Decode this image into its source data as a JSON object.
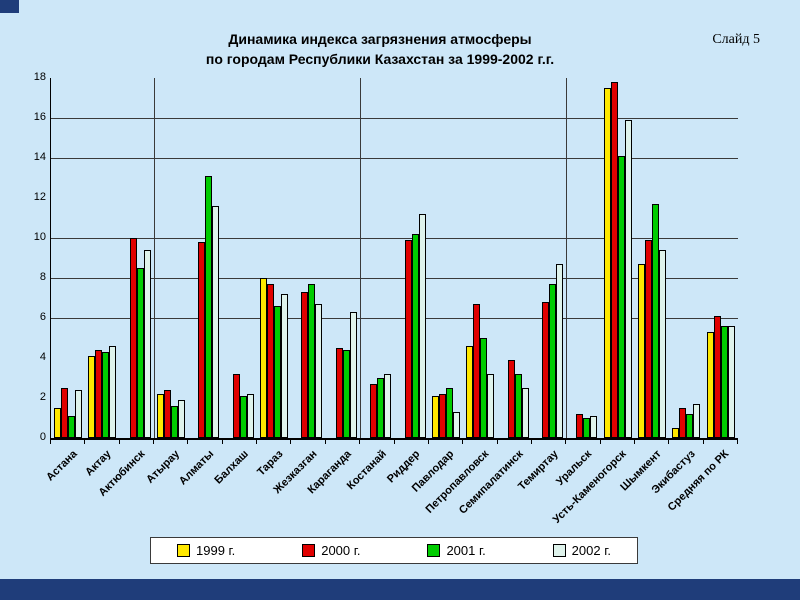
{
  "slide": {
    "title_line1": "Динамика индекса загрязнения атмосферы",
    "title_line2": "по городам Республики Казахстан за 1999-2002 г.г.",
    "slide_number": "Слайд 5",
    "background_color": "#cde7f8",
    "accent_color": "#1f3d7a"
  },
  "chart_data": {
    "type": "bar",
    "title": "Динамика индекса загрязнения атмосферы по городам Республики Казахстан за 1999-2002 г.г.",
    "xlabel": "",
    "ylabel": "",
    "categories": [
      "Астана",
      "Актау",
      "Актюбинск",
      "Атырау",
      "Алматы",
      "Балхаш",
      "Тараз",
      "Жезказган",
      "Караганда",
      "Костанай",
      "Риддер",
      "Павлодар",
      "Петропавловск",
      "Семипалатинск",
      "Темиртау",
      "Уральск",
      "Усть-Каменогорск",
      "Шымкент",
      "Экибастуз",
      "Средняя по РК"
    ],
    "series": [
      {
        "name": "1999 г.",
        "color": "#ffe800",
        "values": [
          1.5,
          4.1,
          0,
          2.2,
          0,
          0,
          8.0,
          0,
          0,
          0,
          0,
          2.1,
          4.6,
          0,
          0,
          0,
          17.5,
          8.7,
          0.5,
          5.3
        ]
      },
      {
        "name": "2000 г.",
        "color": "#e00000",
        "values": [
          2.5,
          4.4,
          10.0,
          2.4,
          9.8,
          3.2,
          7.7,
          7.3,
          4.5,
          2.7,
          9.9,
          2.2,
          6.7,
          3.9,
          6.8,
          1.2,
          17.8,
          9.9,
          1.5,
          6.1
        ]
      },
      {
        "name": "2001 г.",
        "color": "#00cc00",
        "values": [
          1.1,
          4.3,
          8.5,
          1.6,
          13.1,
          2.1,
          6.6,
          7.7,
          4.4,
          3.0,
          10.2,
          2.5,
          5.0,
          3.2,
          7.7,
          1.0,
          14.1,
          11.7,
          1.2,
          5.6
        ]
      },
      {
        "name": "2002 г.",
        "color": "#dff3ec",
        "values": [
          2.4,
          4.6,
          9.4,
          1.9,
          11.6,
          2.2,
          7.2,
          6.7,
          6.3,
          3.2,
          11.2,
          1.3,
          3.2,
          2.5,
          8.7,
          1.1,
          15.9,
          9.4,
          1.7,
          5.6
        ]
      }
    ],
    "ylim": [
      0,
      18
    ],
    "yticks": [
      0,
      2,
      4,
      6,
      8,
      10,
      12,
      14,
      16,
      18
    ],
    "gridline_values": [
      6,
      8,
      10,
      14,
      16
    ],
    "category_separators_after": [
      3,
      9,
      15
    ],
    "grid": true,
    "legend_position": "bottom",
    "zero_value_means_no_bar": true
  }
}
